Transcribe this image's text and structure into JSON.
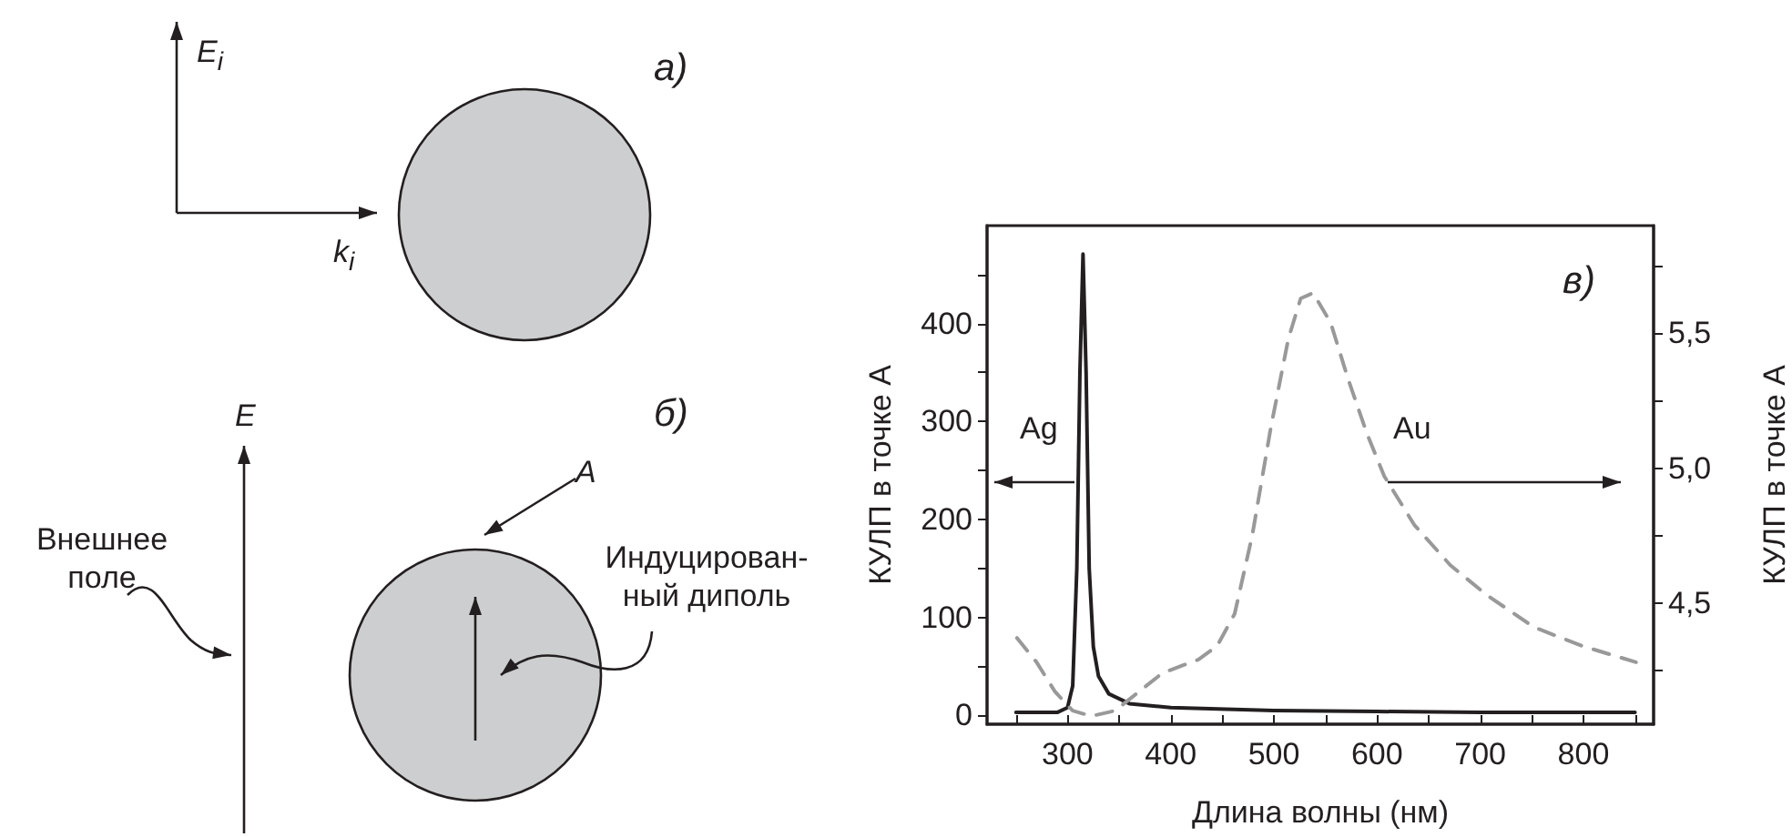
{
  "chart_data": {
    "type": "line",
    "xlabel": "Длина волны (нм)",
    "ylabel": "КУЛП в точке А",
    "y2label": "КУЛП в точке А",
    "xlim": [
      222,
      868
    ],
    "xticks": [
      {
        "value": 250,
        "label": null
      },
      300,
      {
        "value": 350,
        "label": null
      },
      400,
      {
        "value": 450,
        "label": null
      },
      500,
      {
        "value": 550,
        "label": null
      },
      600,
      {
        "value": 650,
        "label": null
      },
      700,
      {
        "value": 750,
        "label": null
      },
      800,
      {
        "value": 850,
        "label": null
      }
    ],
    "ylim": [
      -9,
      500
    ],
    "yticks": [
      0,
      {
        "value": 50,
        "label": null
      },
      100,
      {
        "value": 150,
        "label": null
      },
      200,
      {
        "value": 250,
        "label": null
      },
      300,
      {
        "value": 350,
        "label": null
      },
      400,
      {
        "value": 450,
        "label": null
      }
    ],
    "y2lim": [
      4.05,
      5.9
    ],
    "y2ticks": [
      {
        "value": 4.25,
        "label": null
      },
      {
        "value": 4.5,
        "label": "4,5"
      },
      {
        "value": 4.75,
        "label": null
      },
      {
        "value": 5.0,
        "label": "5,0"
      },
      {
        "value": 5.25,
        "label": null
      },
      {
        "value": 5.5,
        "label": "5,5"
      },
      {
        "value": 5.75,
        "label": null
      }
    ],
    "series": [
      {
        "name": "Ag",
        "color": "#231f20",
        "line_style": "solid",
        "x": [
          250,
          290,
          300,
          305,
          309,
          312,
          315,
          318,
          321,
          325,
          330,
          340,
          360,
          400,
          500,
          600,
          700,
          850
        ],
        "values": [
          3,
          3,
          8,
          30,
          150,
          350,
          471,
          350,
          150,
          70,
          40,
          22,
          12,
          8,
          5,
          4,
          3,
          3
        ]
      },
      {
        "name": "Au",
        "color": "#999999",
        "line_style": "dashed",
        "axis": "y2",
        "x": [
          251,
          270,
          288,
          305,
          323,
          346,
          369,
          392,
          427,
          445,
          462,
          479,
          497,
          514,
          526,
          538,
          555,
          572,
          590,
          607,
          636,
          671,
          706,
          752,
          799,
          851
        ],
        "values": [
          4.37,
          4.28,
          4.17,
          4.1,
          4.08,
          4.1,
          4.17,
          4.24,
          4.29,
          4.34,
          4.46,
          4.75,
          5.15,
          5.48,
          5.63,
          5.65,
          5.54,
          5.33,
          5.13,
          4.97,
          4.79,
          4.64,
          4.53,
          4.41,
          4.34,
          4.28
        ]
      }
    ],
    "annotations": [
      "в)",
      "а)",
      "E$_{i}$",
      "k$_{i}$",
      "б)",
      "E",
      "A",
      "Внешнее поле",
      "Индуцирован-ный диполь"
    ],
    "legend": false,
    "grid": false,
    "marker": "none"
  }
}
